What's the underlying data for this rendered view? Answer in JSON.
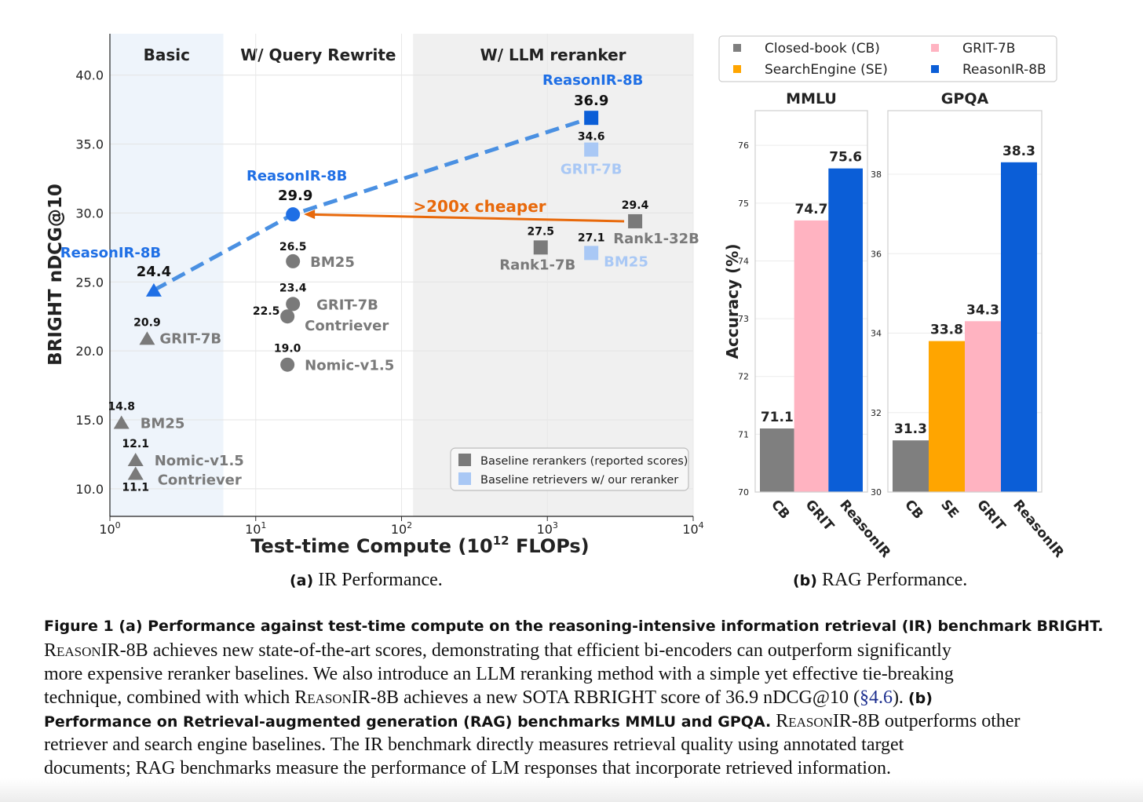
{
  "panel_a": {
    "regions": [
      {
        "label": "Basic",
        "fill": "#eef4fb"
      },
      {
        "label": "W/ Query Rewrite",
        "fill": "#ffffff"
      },
      {
        "label": "W/ LLM reranker",
        "fill": "#f0f0f0"
      }
    ],
    "annotation": ">200x cheaper",
    "legend": [
      {
        "label": "Baseline rerankers (reported scores)",
        "color": "#7a7a7a"
      },
      {
        "label": "Baseline retrievers w/ our reranker",
        "color": "#a9c8f5"
      }
    ],
    "subcaption_letter": "(a)",
    "subcaption_text": "IR Performance."
  },
  "panel_b": {
    "legend": [
      {
        "label": "Closed-book (CB)",
        "color": "#7f7f7f"
      },
      {
        "label": "GRIT-7B",
        "color": "#ffb3c1"
      },
      {
        "label": "SearchEngine (SE)",
        "color": "#ffa500"
      },
      {
        "label": "ReasonIR-8B",
        "color": "#0b5ed7"
      }
    ],
    "subcaption_letter": "(b)",
    "subcaption_text": "RAG Performance."
  },
  "chart_data": [
    {
      "type": "scatter",
      "title": "",
      "xlabel": "Test-time Compute (10^12 FLOPs)",
      "ylabel": "BRIGHT nDCG@10",
      "x_scale": "log",
      "xlim": [
        1,
        10000
      ],
      "ylim": [
        8,
        43
      ],
      "x_ticks": [
        1,
        10,
        100,
        1000,
        10000
      ],
      "y_ticks": [
        10.0,
        15.0,
        20.0,
        25.0,
        30.0,
        35.0,
        40.0
      ],
      "points": [
        {
          "label": "ReasonIR-8B",
          "x": 2,
          "y": 24.4,
          "value": "24.4",
          "marker": "triangle",
          "color": "#1f6fe5"
        },
        {
          "label": "GRIT-7B",
          "x": 1.8,
          "y": 20.9,
          "value": "20.9",
          "marker": "triangle",
          "color": "#7a7a7a"
        },
        {
          "label": "BM25",
          "x": 1.2,
          "y": 14.8,
          "value": "14.8",
          "marker": "triangle",
          "color": "#7a7a7a"
        },
        {
          "label": "Nomic-v1.5",
          "x": 1.5,
          "y": 12.1,
          "value": "12.1",
          "marker": "triangle",
          "color": "#7a7a7a"
        },
        {
          "label": "Contriever",
          "x": 1.5,
          "y": 11.1,
          "value": "11.1",
          "marker": "triangle",
          "color": "#7a7a7a"
        },
        {
          "label": "ReasonIR-8B",
          "x": 18,
          "y": 29.9,
          "value": "29.9",
          "marker": "circle",
          "color": "#1f6fe5"
        },
        {
          "label": "BM25",
          "x": 18,
          "y": 26.5,
          "value": "26.5",
          "marker": "circle",
          "color": "#7a7a7a"
        },
        {
          "label": "GRIT-7B",
          "x": 18,
          "y": 23.4,
          "value": "23.4",
          "marker": "circle",
          "color": "#7a7a7a"
        },
        {
          "label": "Contriever",
          "x": 16.5,
          "y": 22.5,
          "value": "22.5",
          "marker": "circle",
          "color": "#7a7a7a"
        },
        {
          "label": "Nomic-v1.5",
          "x": 16.5,
          "y": 19.0,
          "value": "19.0",
          "marker": "circle",
          "color": "#7a7a7a"
        },
        {
          "label": "ReasonIR-8B",
          "x": 2000,
          "y": 36.9,
          "value": "36.9",
          "marker": "square",
          "color": "#0b5ed7"
        },
        {
          "label": "GRIT-7B",
          "x": 2000,
          "y": 34.6,
          "value": "34.6",
          "marker": "square",
          "color": "#a9c8f5"
        },
        {
          "label": "BM25",
          "x": 2000,
          "y": 27.1,
          "value": "27.1",
          "marker": "square",
          "color": "#a9c8f5"
        },
        {
          "label": "Rank1-7B",
          "x": 900,
          "y": 27.5,
          "value": "27.5",
          "marker": "square",
          "color": "#7a7a7a"
        },
        {
          "label": "Rank1-32B",
          "x": 4000,
          "y": 29.4,
          "value": "29.4",
          "marker": "square",
          "color": "#7a7a7a"
        }
      ]
    },
    {
      "type": "bar",
      "title": "MMLU",
      "ylabel": "Accuracy (%)",
      "ylim": [
        70,
        76.6
      ],
      "y_ticks": [
        70,
        71,
        72,
        73,
        74,
        75,
        76
      ],
      "categories": [
        "CB",
        "GRIT",
        "ReasonIR"
      ],
      "values": [
        71.1,
        74.7,
        75.6
      ],
      "value_labels": [
        "71.1",
        "74.7",
        "75.6"
      ],
      "colors": [
        "#7f7f7f",
        "#ffb3c1",
        "#0b5ed7"
      ]
    },
    {
      "type": "bar",
      "title": "GPQA",
      "ylabel": "",
      "ylim": [
        30,
        39.6
      ],
      "y_ticks": [
        30,
        32,
        34,
        36,
        38
      ],
      "categories": [
        "CB",
        "SE",
        "GRIT",
        "ReasonIR"
      ],
      "values": [
        31.3,
        33.8,
        34.3,
        38.3
      ],
      "value_labels": [
        "31.3",
        "33.8",
        "34.3",
        "38.3"
      ],
      "colors": [
        "#7f7f7f",
        "#ffa500",
        "#ffb3c1",
        "#0b5ed7"
      ]
    }
  ],
  "caption": {
    "line1_bold": "Figure 1  (a) Performance against test-time compute on the reasoning-intensive information retrieval (IR) benchmark BRIGHT.",
    "line2_sc": "ReasonIR",
    "line2": "-8B achieves new state-of-the-art scores, demonstrating that efficient bi-encoders can outperform significantly",
    "line3": "more expensive reranker baselines. We also introduce an LLM reranking method with a simple yet effective tie-breaking",
    "line4_a": "technique, combined with which ",
    "line4_sc": "ReasonIR",
    "line4_b": "-8B achieves a new SOTA RBRIGHT score of 36.9 nDCG@10 (",
    "line4_ref": "§4.6",
    "line4_c": ").  ",
    "line4_bold": "(b)",
    "line5_bold": "Performance on Retrieval-augmented generation (RAG) benchmarks MMLU and GPQA.",
    "line5_a": " ",
    "line5_sc": "ReasonIR",
    "line5_b": "-8B outperforms other",
    "line6": "retriever and search engine baselines.  The IR benchmark directly measures retrieval quality using annotated target",
    "line7": "documents; RAG benchmarks measure the performance of LM responses that incorporate retrieved information."
  }
}
